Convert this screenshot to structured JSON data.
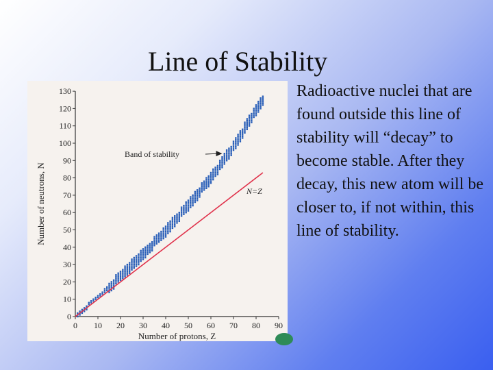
{
  "slide": {
    "title": "Line of Stability",
    "body": "Radioactive nuclei that are found outside this line of stability will “decay” to become stable. After they decay, this new atom will be closer to, if not within, this line of stability."
  },
  "chart_data": {
    "type": "scatter",
    "xlabel": "Number of protons, Z",
    "ylabel": "Number of neutrons, N",
    "xlim": [
      0,
      90
    ],
    "ylim": [
      0,
      130
    ],
    "x_ticks": [
      "0",
      "10",
      "20",
      "30",
      "40",
      "50",
      "60",
      "70",
      "80",
      "90"
    ],
    "y_ticks": [
      "0",
      "10",
      "20",
      "30",
      "40",
      "50",
      "60",
      "70",
      "80",
      "90",
      "100",
      "110",
      "120",
      "130"
    ],
    "annotations": {
      "band": "Band of stability",
      "band_arrow_target": [
        65,
        94
      ],
      "nz_line": "N=Z"
    },
    "reference_line": {
      "name": "N=Z",
      "x": [
        0,
        83
      ],
      "y": [
        0,
        83
      ],
      "color": "#e0324b"
    },
    "band_centerline": {
      "x": [
        1,
        10,
        20,
        30,
        40,
        50,
        60,
        70,
        80,
        83
      ],
      "y": [
        1,
        11,
        23,
        36,
        49,
        64,
        80,
        98,
        119,
        125
      ]
    },
    "band_halfwidth_n": 3,
    "point_color": "#2a5fb8",
    "grid": false
  }
}
